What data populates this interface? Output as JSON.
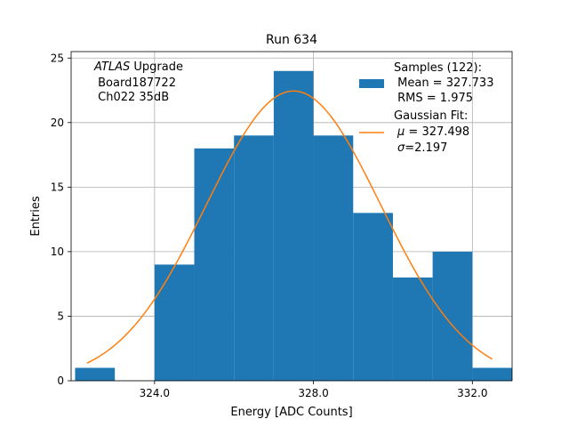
{
  "chart_data": {
    "type": "bar",
    "title": "Run 634",
    "xlabel": "Energy [ADC Counts]",
    "ylabel": "Entries",
    "xlim": [
      321.9,
      333.0
    ],
    "ylim": [
      0,
      25.5
    ],
    "grid": true,
    "bin_width": 1.0,
    "bins": [
      {
        "x0": 322.0,
        "x1": 323.0,
        "value": 1
      },
      {
        "x0": 323.0,
        "x1": 324.0,
        "value": 0
      },
      {
        "x0": 324.0,
        "x1": 325.0,
        "value": 9
      },
      {
        "x0": 325.0,
        "x1": 326.0,
        "value": 18
      },
      {
        "x0": 326.0,
        "x1": 327.0,
        "value": 19
      },
      {
        "x0": 327.0,
        "x1": 328.0,
        "value": 24
      },
      {
        "x0": 328.0,
        "x1": 329.0,
        "value": 19
      },
      {
        "x0": 329.0,
        "x1": 330.0,
        "value": 13
      },
      {
        "x0": 330.0,
        "x1": 331.0,
        "value": 8
      },
      {
        "x0": 331.0,
        "x1": 332.0,
        "value": 10
      },
      {
        "x0": 332.0,
        "x1": 333.0,
        "value": 1
      }
    ],
    "x_ticks": [
      324.0,
      328.0,
      332.0
    ],
    "x_tick_labels": [
      "324.0",
      "328.0",
      "332.0"
    ],
    "y_ticks": [
      0,
      5,
      10,
      15,
      20,
      25
    ],
    "y_tick_labels": [
      "0",
      "5",
      "10",
      "15",
      "20",
      "25"
    ],
    "fit": {
      "type": "gaussian",
      "amplitude": 22.45,
      "mu": 327.498,
      "sigma": 2.197,
      "x_range": [
        322.3,
        332.5
      ]
    },
    "colors": {
      "bars": "#1f77b4",
      "fit_line": "#ff7f0e",
      "grid": "#b0b0b0"
    },
    "annotation": {
      "italic": "ATLAS",
      "upright": " Upgrade",
      "line2": " Board187722",
      "line3": " Ch022 35dB",
      "placement": "top-left"
    },
    "legend": {
      "placement": "top-right",
      "samples_line1": "Samples (122):",
      "samples_line2": " Mean = 327.733",
      "samples_line3": " RMS = 1.975",
      "fit_line1": "Gaussian Fit:",
      "mu_symbol": "μ",
      "mu_text": " = 327.498",
      "sigma_symbol": "σ",
      "sigma_text": "=2.197"
    }
  }
}
